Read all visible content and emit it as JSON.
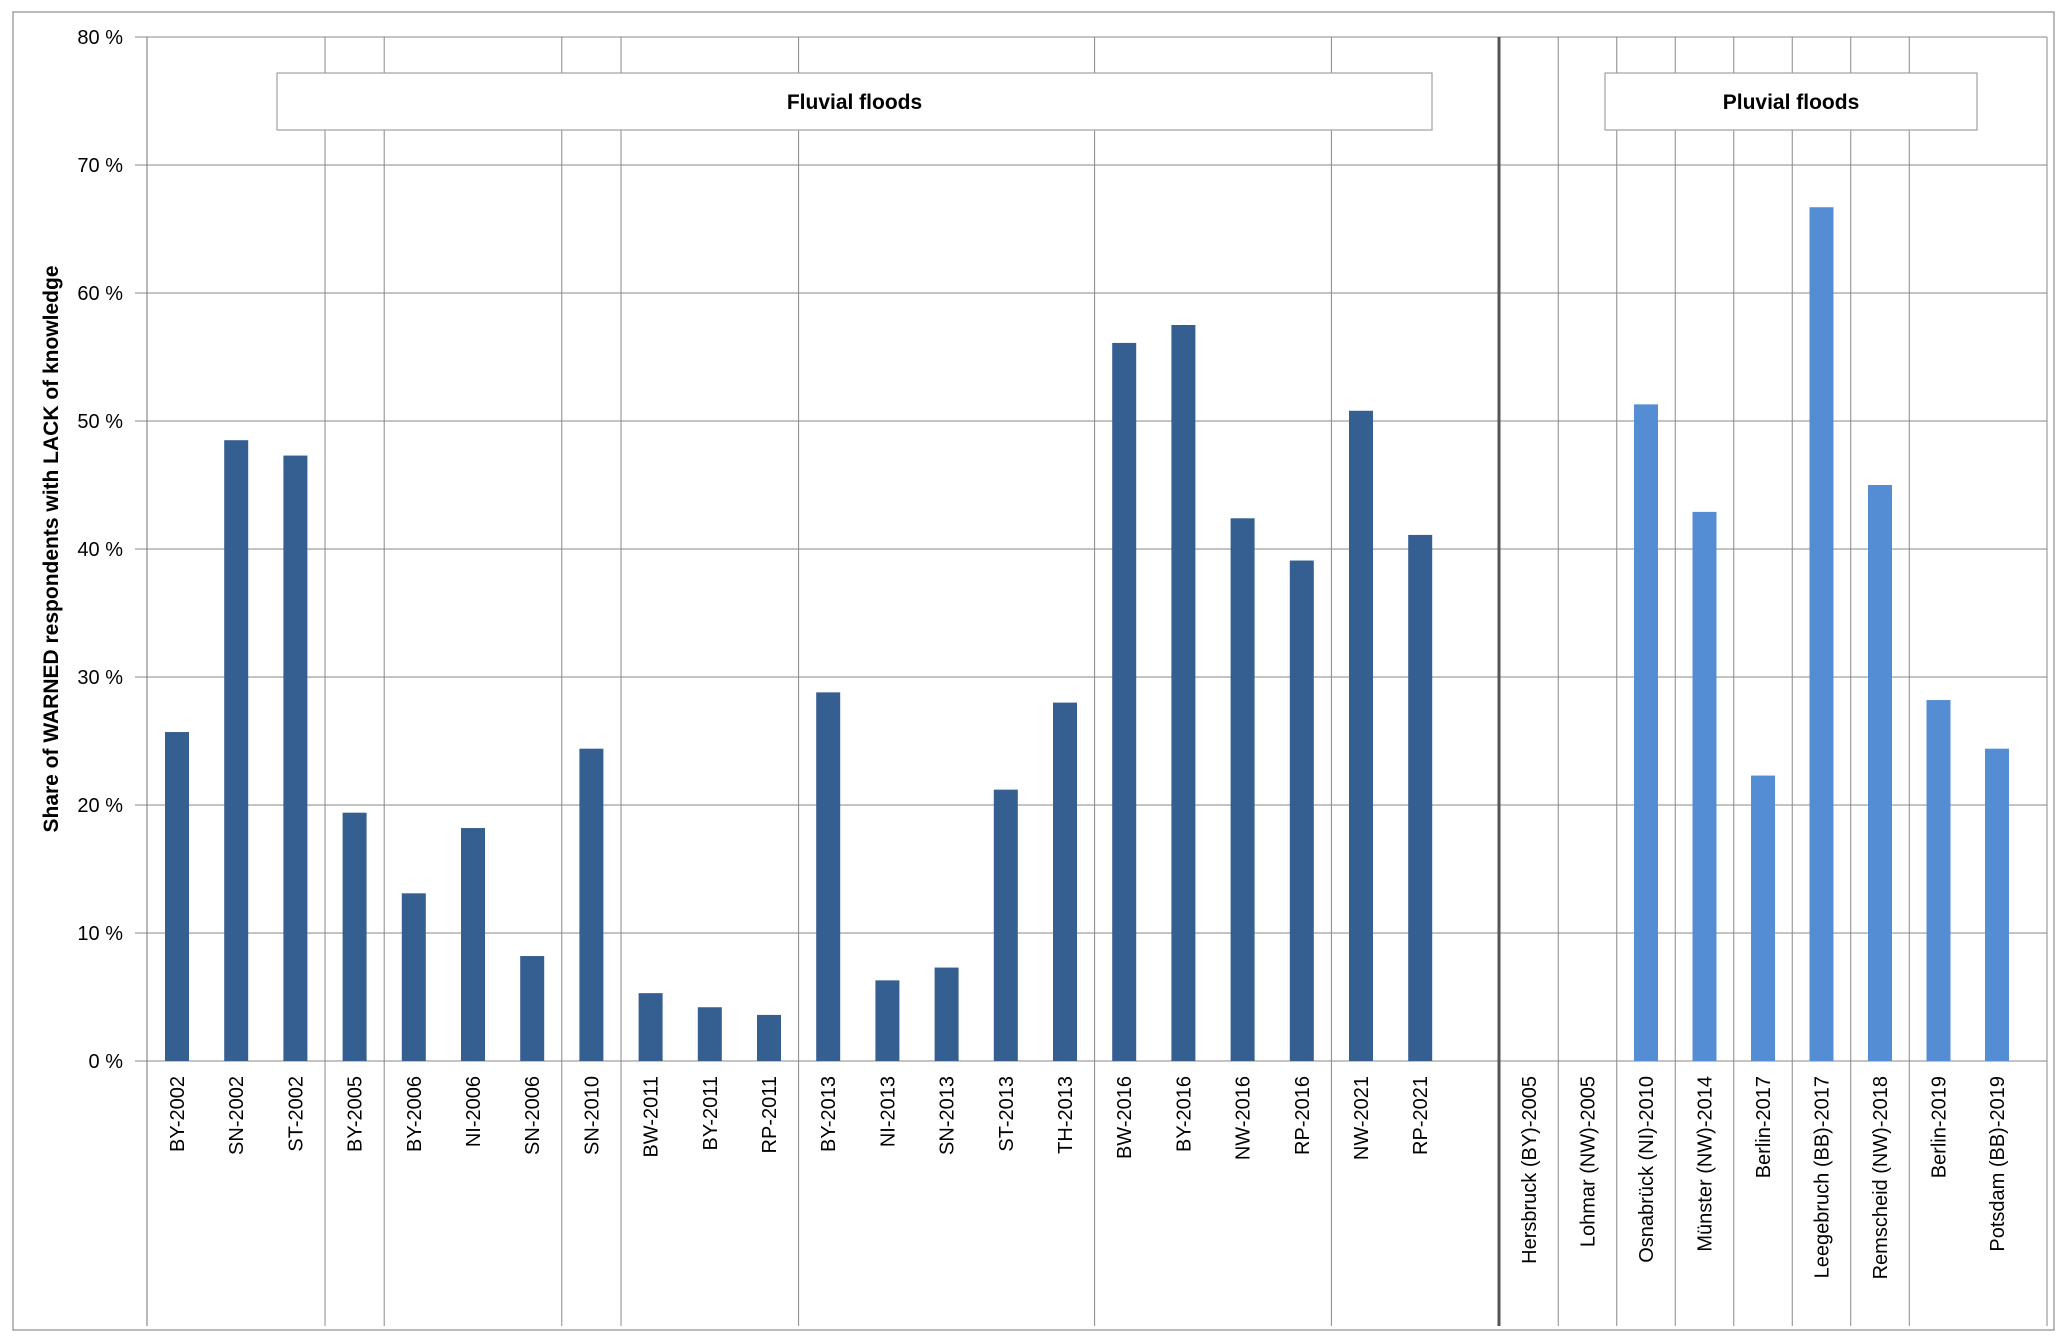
{
  "chart_data": {
    "type": "bar",
    "ylabel": "Share of WARNED respondents with LACK of knowledge",
    "xlabel": "",
    "ylim": [
      0,
      80
    ],
    "yticks": [
      "0 %",
      "10 %",
      "20 %",
      "30 %",
      "40 %",
      "50 %",
      "60 %",
      "70 %",
      "80 %"
    ],
    "grid": true,
    "legend": "none",
    "colors": {
      "fluvial": "#355F91",
      "pluvial": "#548DD4",
      "grid": "#888888",
      "divider": "#555555"
    },
    "groups": [
      {
        "label": "Fluvial floods",
        "color": "#355F91",
        "categories": [
          "BY-2002",
          "SN-2002",
          "ST-2002",
          "BY-2005",
          "BY-2006",
          "NI-2006",
          "SN-2006",
          "SN-2010",
          "BW-2011",
          "BY-2011",
          "RP-2011",
          "BY-2013",
          "NI-2013",
          "SN-2013",
          "ST-2013",
          "TH-2013",
          "BW-2016",
          "BY-2016",
          "NW-2016",
          "RP-2016",
          "NW-2021",
          "RP-2021"
        ],
        "values": [
          25.7,
          48.5,
          47.3,
          19.4,
          13.1,
          18.2,
          8.2,
          24.4,
          5.3,
          4.2,
          3.6,
          28.8,
          6.3,
          7.3,
          21.2,
          28.0,
          56.1,
          57.5,
          42.4,
          39.1,
          50.8,
          41.1
        ],
        "subgroups": [
          3,
          1,
          3,
          1,
          3,
          5,
          4,
          2
        ]
      },
      {
        "label": "Pluvial floods",
        "color": "#548DD4",
        "categories": [
          "Hersbruck (BY)-2005",
          "Lohmar (NW)-2005",
          "Osnabrück (NI)-2010",
          "Münster (NW)-2014",
          "Berlin-2017",
          "Leegebruch (BB)-2017",
          "Remscheid (NW)-2018",
          "Berlin-2019",
          "Potsdam (BB)-2019"
        ],
        "values": [
          0,
          0,
          51.3,
          42.9,
          22.3,
          66.7,
          45.0,
          28.2,
          24.4
        ],
        "subgroups": [
          1,
          1,
          1,
          1,
          1,
          1,
          1,
          2
        ]
      }
    ]
  }
}
